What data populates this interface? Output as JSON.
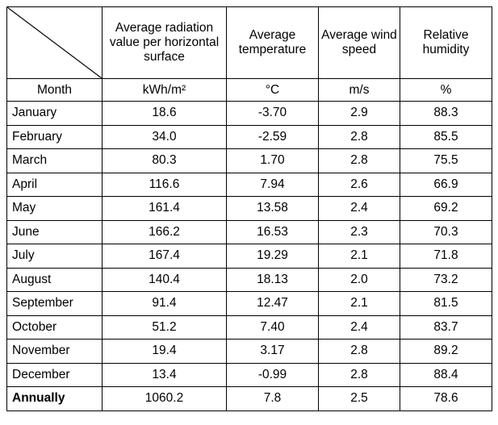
{
  "headers": [
    "Average radiation value per horizontal surface",
    "Average temperature",
    "Average wind speed",
    "Relative humidity"
  ],
  "units_row": {
    "label": "Month",
    "units": [
      "kWh/m²",
      "°C",
      "m/s",
      "%"
    ]
  },
  "rows": [
    {
      "month": "January",
      "values": [
        "18.6",
        "-3.70",
        "2.9",
        "88.3"
      ]
    },
    {
      "month": "February",
      "values": [
        "34.0",
        "-2.59",
        "2.8",
        "85.5"
      ]
    },
    {
      "month": "March",
      "values": [
        "80.3",
        "1.70",
        "2.8",
        "75.5"
      ]
    },
    {
      "month": "April",
      "values": [
        "116.6",
        "7.94",
        "2.6",
        "66.9"
      ]
    },
    {
      "month": "May",
      "values": [
        "161.4",
        "13.58",
        "2.4",
        "69.2"
      ]
    },
    {
      "month": "June",
      "values": [
        "166.2",
        "16.53",
        "2.3",
        "70.3"
      ]
    },
    {
      "month": "July",
      "values": [
        "167.4",
        "19.29",
        "2.1",
        "71.8"
      ]
    },
    {
      "month": "August",
      "values": [
        "140.4",
        "18.13",
        "2.0",
        "73.2"
      ]
    },
    {
      "month": "September",
      "values": [
        "91.4",
        "12.47",
        "2.1",
        "81.5"
      ]
    },
    {
      "month": "October",
      "values": [
        "51.2",
        "7.40",
        "2.4",
        "83.7"
      ]
    },
    {
      "month": "November",
      "values": [
        "19.4",
        "3.17",
        "2.8",
        "89.2"
      ]
    },
    {
      "month": "December",
      "values": [
        "13.4",
        "-0.99",
        "2.8",
        "88.4"
      ]
    }
  ],
  "total": {
    "month": "Annually",
    "values": [
      "1060.2",
      "7.8",
      "2.5",
      "78.6"
    ]
  }
}
